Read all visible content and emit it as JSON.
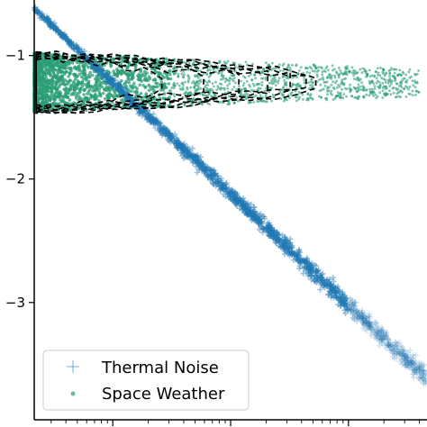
{
  "chart_data": {
    "type": "scatter",
    "title": "",
    "xlabel": "",
    "ylabel": "",
    "ylim": [
      -3.95,
      -0.55
    ],
    "y_ticks": [
      {
        "value": -1,
        "label": "−1"
      },
      {
        "value": -2,
        "label": "−2"
      },
      {
        "value": -3,
        "label": "−3"
      }
    ],
    "x_scale": "log",
    "x_tick_labels_visible": false,
    "grid": false,
    "legend_position": "lower-left",
    "series": [
      {
        "name": "Thermal Noise",
        "marker": "plus",
        "color": "#1f77b4",
        "trend": {
          "x": [
            0.0,
            1.0
          ],
          "y": [
            -0.62,
            -3.62
          ]
        }
      },
      {
        "name": "Space Weather",
        "marker": "dot",
        "color": "#2a9d74",
        "band": {
          "y_center": -1.22,
          "y_spread": 0.24,
          "x_extent": [
            0.0,
            0.98
          ]
        }
      }
    ],
    "density_contours": {
      "style": "dashed",
      "color": "#000000",
      "levels": 7
    }
  }
}
